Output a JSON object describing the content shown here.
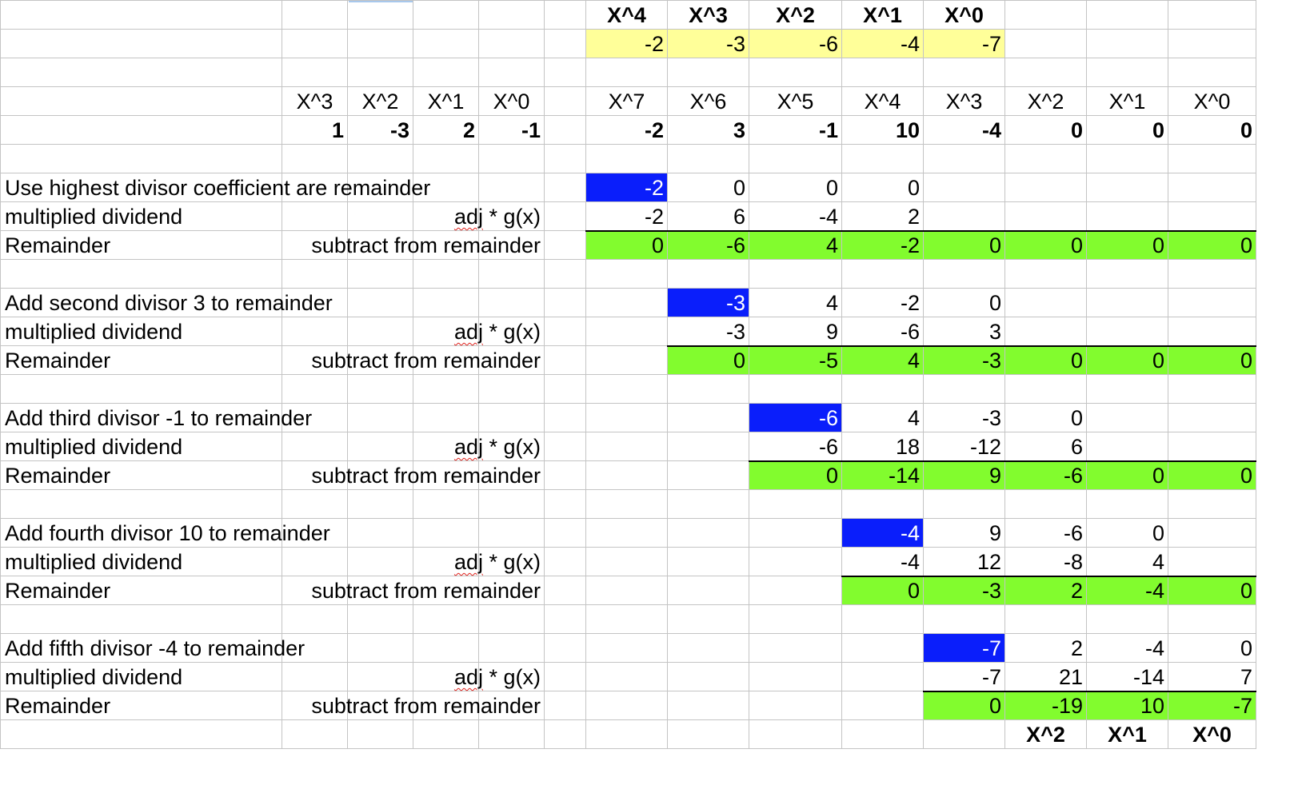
{
  "divisor_headers": [
    "X^4",
    "X^3",
    "X^2",
    "X^1",
    "X^0"
  ],
  "divisor_values": [
    "-2",
    "-3",
    "-6",
    "-4",
    "-7"
  ],
  "g_headers": [
    "X^3",
    "X^2",
    "X^1",
    "X^0"
  ],
  "g_values": [
    "1",
    "-3",
    "2",
    "-1"
  ],
  "f_headers": [
    "X^7",
    "X^6",
    "X^5",
    "X^4",
    "X^3",
    "X^2",
    "X^1",
    "X^0"
  ],
  "f_values": [
    "-2",
    "3",
    "-1",
    "10",
    "-4",
    "0",
    "0",
    "0"
  ],
  "labels": {
    "adj": "adj",
    "gx": " * g(x)",
    "multiplied": "multiplied dividend",
    "remainder": "Remainder",
    "subtract": "subtract from remainder"
  },
  "steps": [
    {
      "title": "Use highest divisor coefficient are remainder",
      "adj": [
        "-2",
        "0",
        "0",
        "0"
      ],
      "mult": [
        "-2",
        "6",
        "-4",
        "2"
      ],
      "rem": [
        "0",
        "-6",
        "4",
        "-2",
        "0",
        "0",
        "0",
        "0"
      ]
    },
    {
      "title": "Add second divisor 3 to remainder",
      "adj": [
        "-3",
        "4",
        "-2",
        "0"
      ],
      "mult": [
        "-3",
        "9",
        "-6",
        "3"
      ],
      "rem": [
        "0",
        "-5",
        "4",
        "-3",
        "0",
        "0",
        "0"
      ]
    },
    {
      "title": "Add third divisor -1 to remainder",
      "adj": [
        "-6",
        "4",
        "-3",
        "0"
      ],
      "mult": [
        "-6",
        "18",
        "-12",
        "6"
      ],
      "rem": [
        "0",
        "-14",
        "9",
        "-6",
        "0",
        "0"
      ]
    },
    {
      "title": "Add fourth divisor 10 to remainder",
      "adj": [
        "-4",
        "9",
        "-6",
        "0"
      ],
      "mult": [
        "-4",
        "12",
        "-8",
        "4"
      ],
      "rem": [
        "0",
        "-3",
        "2",
        "-4",
        "0"
      ]
    },
    {
      "title": "Add fifth divisor -4 to remainder",
      "adj": [
        "-7",
        "2",
        "-4",
        "0"
      ],
      "mult": [
        "-7",
        "21",
        "-14",
        "7"
      ],
      "rem": [
        "0",
        "-19",
        "10",
        "-7"
      ]
    }
  ],
  "result_headers": [
    "X^2",
    "X^1",
    "X^0"
  ],
  "colors": {
    "divisor_fill": "#ffff99",
    "leading_fill": "#0a1efb",
    "remainder_fill": "#82fc2e",
    "grid": "#c4c4c4"
  }
}
